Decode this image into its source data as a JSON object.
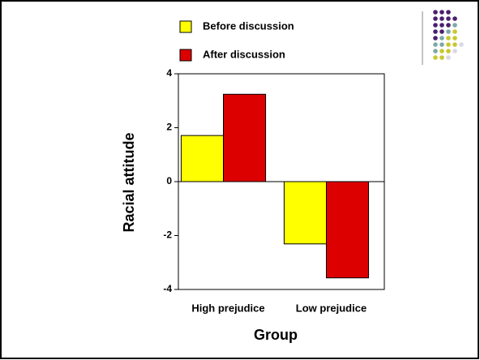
{
  "chart_data": {
    "type": "bar",
    "ylabel": "Racial attitude",
    "xlabel": "Group",
    "categories": [
      "High prejudice",
      "Low prejudice"
    ],
    "series": [
      {
        "name": "Before discussion",
        "color": "#ffff00",
        "values": [
          1.71,
          -2.31
        ]
      },
      {
        "name": "After discussion",
        "color": "#dd0000",
        "values": [
          3.24,
          -3.57
        ]
      }
    ],
    "ylim": [
      -4,
      4
    ],
    "yticks": [
      4,
      2,
      0,
      -2,
      -4
    ],
    "legend": "top"
  }
}
